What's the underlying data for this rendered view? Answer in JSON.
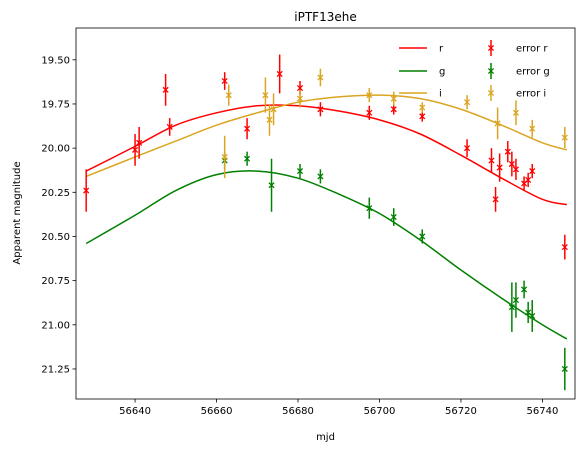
{
  "chart_data": {
    "type": "scatter",
    "title": "iPTF13ehe",
    "xlabel": "mjd",
    "ylabel": "Apparent magnitude",
    "xlim": [
      56625.5,
      56748
    ],
    "ylim": [
      21.42,
      19.32
    ],
    "y_inverted": true,
    "xticks": [
      56640,
      56660,
      56680,
      56700,
      56720,
      56740
    ],
    "yticks": [
      19.5,
      19.75,
      20.0,
      20.25,
      20.5,
      20.75,
      21.0,
      21.25
    ],
    "ytick_labels": [
      "19.50",
      "19.75",
      "20.00",
      "20.25",
      "20.50",
      "20.75",
      "21.00",
      "21.25"
    ],
    "legend_position": "top-right",
    "legend_columns": 2,
    "grid": false,
    "colors": {
      "r": "#ff0000",
      "g": "#008000",
      "i": "#daa520"
    },
    "fit_lines": [
      {
        "name": "r",
        "color": "#ff0000",
        "x": [
          56628,
          56640,
          56650,
          56660,
          56670,
          56680,
          56690,
          56700,
          56710,
          56720,
          56730,
          56740,
          56746
        ],
        "y": [
          20.13,
          19.99,
          19.87,
          19.8,
          19.76,
          19.76,
          19.79,
          19.84,
          19.92,
          20.04,
          20.17,
          20.29,
          20.32
        ]
      },
      {
        "name": "g",
        "color": "#008000",
        "x": [
          56628,
          56640,
          56650,
          56660,
          56670,
          56680,
          56690,
          56700,
          56710,
          56720,
          56730,
          56740,
          56746
        ],
        "y": [
          20.54,
          20.38,
          20.24,
          20.15,
          20.13,
          20.17,
          20.26,
          20.37,
          20.52,
          20.69,
          20.85,
          21.0,
          21.08
        ]
      },
      {
        "name": "i",
        "color": "#daa520",
        "x": [
          56628,
          56640,
          56650,
          56660,
          56670,
          56680,
          56690,
          56700,
          56710,
          56720,
          56730,
          56740,
          56746
        ],
        "y": [
          20.16,
          20.05,
          19.96,
          19.87,
          19.8,
          19.74,
          19.71,
          19.7,
          19.72,
          19.78,
          19.87,
          19.97,
          20.01
        ]
      }
    ],
    "error_series": [
      {
        "name": "error r",
        "color": "#ff0000",
        "points": [
          {
            "x": 56628,
            "y": 20.24,
            "err": 0.12
          },
          {
            "x": 56640,
            "y": 20.01,
            "err": 0.09
          },
          {
            "x": 56641,
            "y": 19.97,
            "err": 0.09
          },
          {
            "x": 56647.5,
            "y": 19.67,
            "err": 0.09
          },
          {
            "x": 56648.5,
            "y": 19.88,
            "err": 0.05
          },
          {
            "x": 56662,
            "y": 19.62,
            "err": 0.05
          },
          {
            "x": 56667.5,
            "y": 19.89,
            "err": 0.06
          },
          {
            "x": 56675.5,
            "y": 19.58,
            "err": 0.11
          },
          {
            "x": 56680.5,
            "y": 19.66,
            "err": 0.04
          },
          {
            "x": 56685.5,
            "y": 19.78,
            "err": 0.04
          },
          {
            "x": 56697.5,
            "y": 19.8,
            "err": 0.04
          },
          {
            "x": 56703.5,
            "y": 19.78,
            "err": 0.03
          },
          {
            "x": 56710.5,
            "y": 19.82,
            "err": 0.03
          },
          {
            "x": 56721.5,
            "y": 20.0,
            "err": 0.05
          },
          {
            "x": 56727.5,
            "y": 20.07,
            "err": 0.07
          },
          {
            "x": 56728.5,
            "y": 20.29,
            "err": 0.07
          },
          {
            "x": 56729.5,
            "y": 20.11,
            "err": 0.08
          },
          {
            "x": 56731.5,
            "y": 20.02,
            "err": 0.06
          },
          {
            "x": 56732.5,
            "y": 20.09,
            "err": 0.07
          },
          {
            "x": 56733.5,
            "y": 20.12,
            "err": 0.06
          },
          {
            "x": 56735.5,
            "y": 20.2,
            "err": 0.04
          },
          {
            "x": 56736.5,
            "y": 20.18,
            "err": 0.04
          },
          {
            "x": 56737.5,
            "y": 20.13,
            "err": 0.04
          },
          {
            "x": 56745.5,
            "y": 20.56,
            "err": 0.07
          }
        ]
      },
      {
        "name": "error g",
        "color": "#008000",
        "points": [
          {
            "x": 56662,
            "y": 20.07,
            "err": 0.05
          },
          {
            "x": 56667.5,
            "y": 20.06,
            "err": 0.04
          },
          {
            "x": 56673.5,
            "y": 20.21,
            "err": 0.15
          },
          {
            "x": 56680.5,
            "y": 20.13,
            "err": 0.04
          },
          {
            "x": 56685.5,
            "y": 20.16,
            "err": 0.04
          },
          {
            "x": 56697.5,
            "y": 20.34,
            "err": 0.06
          },
          {
            "x": 56703.5,
            "y": 20.39,
            "err": 0.05
          },
          {
            "x": 56710.5,
            "y": 20.5,
            "err": 0.04
          },
          {
            "x": 56732.5,
            "y": 20.9,
            "err": 0.14
          },
          {
            "x": 56733.5,
            "y": 20.86,
            "err": 0.1
          },
          {
            "x": 56735.5,
            "y": 20.8,
            "err": 0.05
          },
          {
            "x": 56736.5,
            "y": 20.93,
            "err": 0.06
          },
          {
            "x": 56737.5,
            "y": 20.95,
            "err": 0.09
          },
          {
            "x": 56745.5,
            "y": 21.25,
            "err": 0.12
          }
        ]
      },
      {
        "name": "error i",
        "color": "#daa520",
        "points": [
          {
            "x": 56662,
            "y": 20.05,
            "err": 0.12
          },
          {
            "x": 56663,
            "y": 19.7,
            "err": 0.06
          },
          {
            "x": 56672,
            "y": 19.7,
            "err": 0.1
          },
          {
            "x": 56673,
            "y": 19.84,
            "err": 0.09
          },
          {
            "x": 56674,
            "y": 19.78,
            "err": 0.09
          },
          {
            "x": 56680.5,
            "y": 19.72,
            "err": 0.05
          },
          {
            "x": 56685.5,
            "y": 19.6,
            "err": 0.05
          },
          {
            "x": 56697.5,
            "y": 19.7,
            "err": 0.04
          },
          {
            "x": 56703.5,
            "y": 19.72,
            "err": 0.04
          },
          {
            "x": 56710.5,
            "y": 19.77,
            "err": 0.03
          },
          {
            "x": 56721.5,
            "y": 19.74,
            "err": 0.04
          },
          {
            "x": 56729,
            "y": 19.86,
            "err": 0.09
          },
          {
            "x": 56733.5,
            "y": 19.8,
            "err": 0.07
          },
          {
            "x": 56737.5,
            "y": 19.89,
            "err": 0.05
          },
          {
            "x": 56745.5,
            "y": 19.94,
            "err": 0.06
          }
        ]
      }
    ]
  }
}
